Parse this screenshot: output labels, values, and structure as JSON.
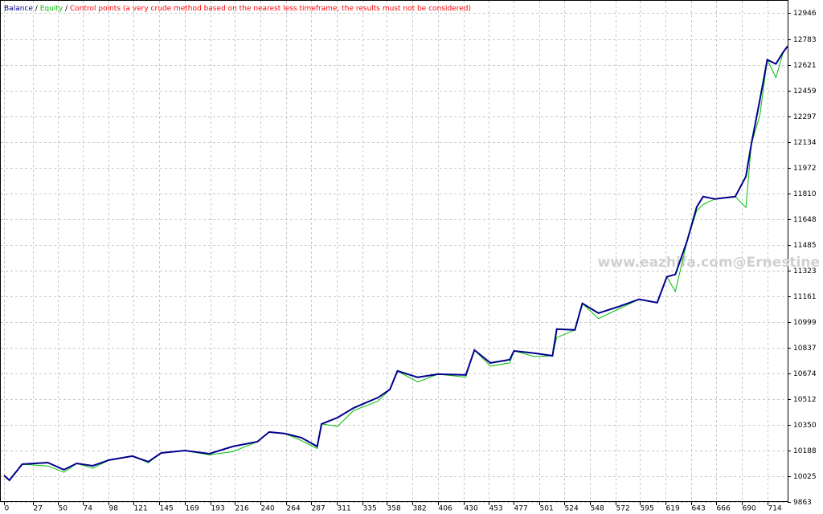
{
  "chart_data": {
    "type": "line",
    "separator": "/",
    "annotation": "Control points (a very crude method based on the nearest less timeframe, the results must not be considered)",
    "annotation_color": "#ff0000",
    "watermark": "www.eazhifa.com@Ernestine",
    "grid": true,
    "x": [
      0,
      5,
      17,
      41,
      56,
      68,
      83,
      98,
      120,
      135,
      147,
      169,
      192,
      214,
      237,
      248,
      263,
      278,
      293,
      297,
      312,
      327,
      350,
      361,
      368,
      387,
      406,
      432,
      440,
      455,
      473,
      477,
      496,
      513,
      517,
      534,
      541,
      556,
      575,
      594,
      611,
      620,
      628,
      639,
      648,
      654,
      665,
      684,
      694,
      699,
      707,
      714,
      722,
      729,
      733
    ],
    "series": [
      {
        "name": "Balance",
        "color": "#00008b",
        "values": [
          10030,
          10000,
          10101,
          10111,
          10066,
          10106,
          10091,
          10127,
          10152,
          10117,
          10172,
          10187,
          10167,
          10213,
          10243,
          10304,
          10294,
          10269,
          10213,
          10355,
          10395,
          10456,
          10522,
          10573,
          10689,
          10649,
          10669,
          10664,
          10821,
          10740,
          10760,
          10816,
          10801,
          10785,
          10953,
          10948,
          11115,
          11054,
          11095,
          11141,
          11120,
          11283,
          11298,
          11511,
          11724,
          11789,
          11774,
          11789,
          11916,
          12119,
          12398,
          12652,
          12626,
          12702,
          12738
        ]
      },
      {
        "name": "Equity",
        "color": "#00c000",
        "values": [
          10030,
          10000,
          10101,
          10090,
          10050,
          10106,
          10075,
          10127,
          10152,
          10110,
          10172,
          10187,
          10160,
          10180,
          10243,
          10304,
          10294,
          10250,
          10200,
          10355,
          10340,
          10440,
          10500,
          10573,
          10689,
          10620,
          10669,
          10650,
          10821,
          10720,
          10740,
          10816,
          10780,
          10785,
          10900,
          10948,
          11115,
          11020,
          11080,
          11141,
          11120,
          11283,
          11190,
          11511,
          11700,
          11740,
          11774,
          11789,
          11720,
          12119,
          12300,
          12652,
          12540,
          12702,
          12738
        ]
      }
    ],
    "xlim": [
      0,
      733
    ],
    "xticks": [
      0,
      27,
      50,
      74,
      98,
      121,
      145,
      169,
      193,
      216,
      240,
      264,
      287,
      311,
      335,
      358,
      382,
      406,
      430,
      453,
      477,
      501,
      524,
      548,
      572,
      595,
      619,
      643,
      666,
      690,
      714
    ],
    "ylim": [
      9863,
      13024
    ],
    "yticks": [
      9863,
      10025,
      10188,
      10350,
      10512,
      10674,
      10837,
      10999,
      11161,
      11323,
      11485,
      11648,
      11810,
      11972,
      12134,
      12297,
      12459,
      12621,
      12783,
      12946
    ]
  }
}
